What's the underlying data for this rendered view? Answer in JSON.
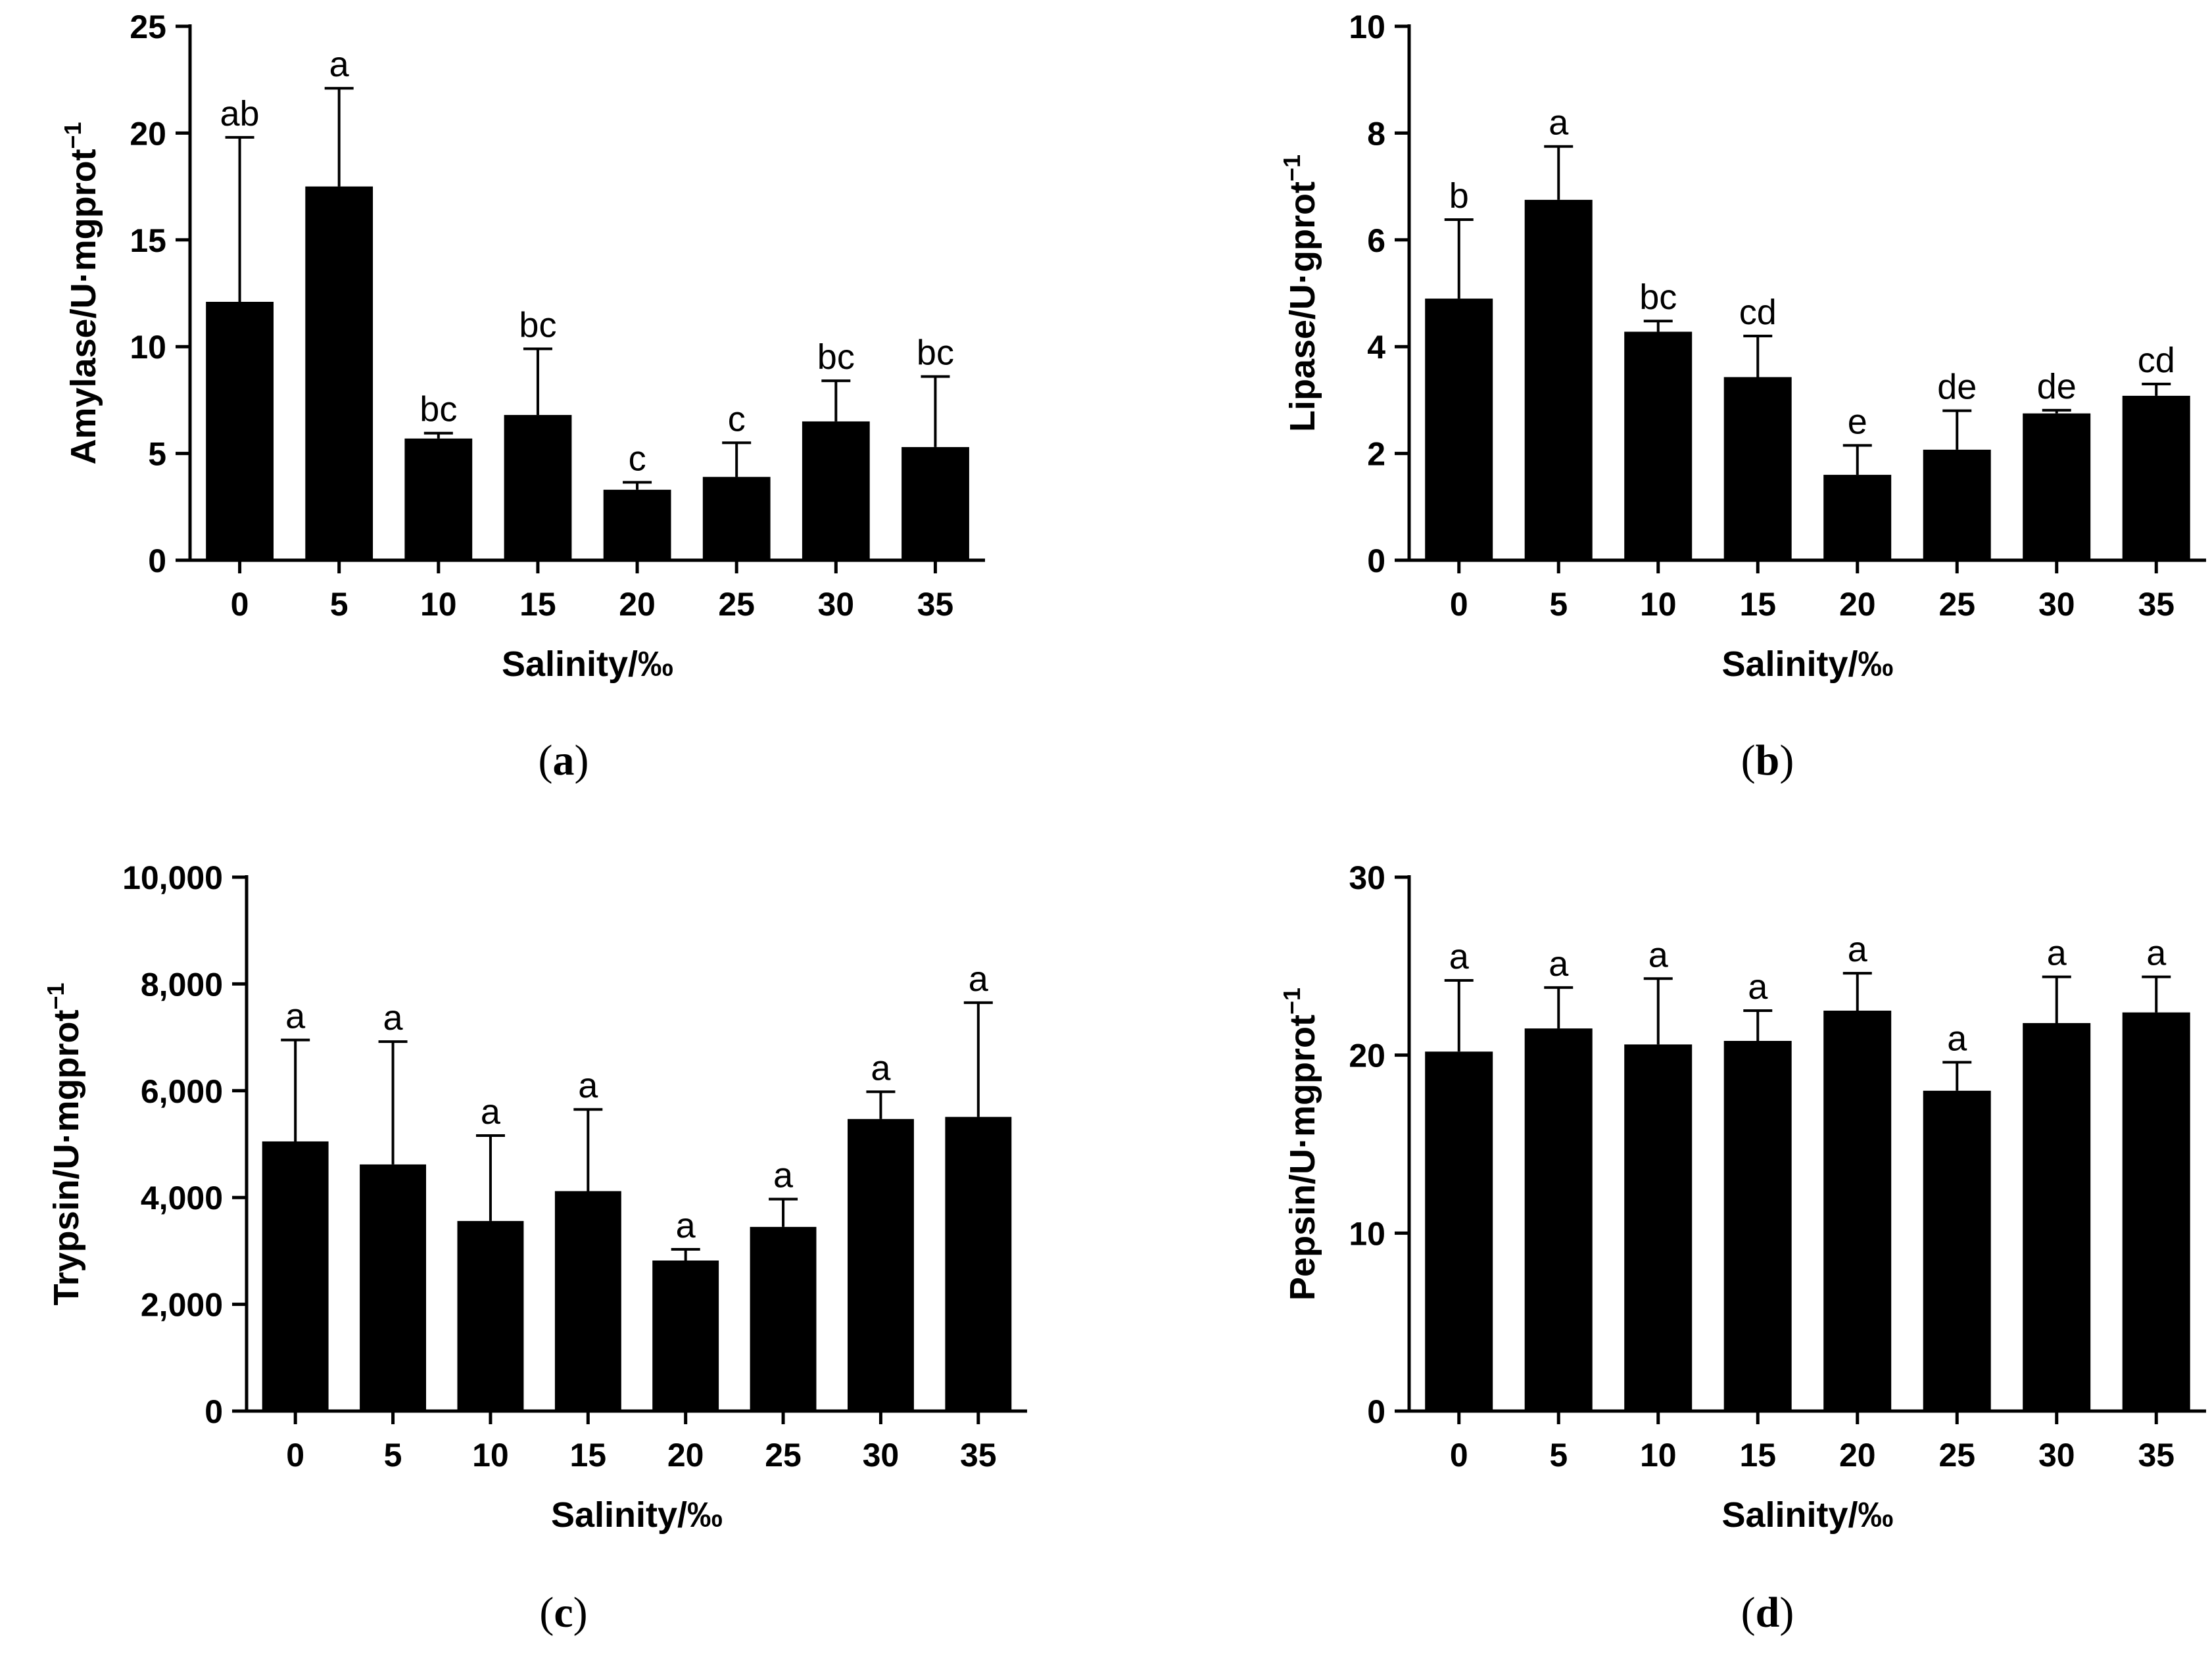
{
  "colors": {
    "bar": "#000000",
    "axis": "#000000",
    "background": "#ffffff"
  },
  "chart_data": [
    {
      "id": "a",
      "type": "bar",
      "panel_label": "(a)",
      "title": "",
      "xlabel": "Salinity/‰",
      "ylabel_main": "Amylase/U·mgprot",
      "ylabel_sup": "−1",
      "categories": [
        "0",
        "5",
        "10",
        "15",
        "20",
        "25",
        "30",
        "35"
      ],
      "values": [
        12.1,
        17.5,
        5.7,
        6.8,
        3.3,
        3.9,
        6.5,
        5.3
      ],
      "errors": [
        7.7,
        4.6,
        0.25,
        3.1,
        0.35,
        1.6,
        1.9,
        3.3
      ],
      "significance": [
        "ab",
        "a",
        "bc",
        "bc",
        "c",
        "c",
        "bc",
        "bc"
      ],
      "ylim": [
        0,
        25
      ],
      "yticks": [
        0,
        5,
        10,
        15,
        20,
        25
      ],
      "ytick_labels": [
        "0",
        "5",
        "10",
        "15",
        "20",
        "25"
      ]
    },
    {
      "id": "b",
      "type": "bar",
      "panel_label": "(b)",
      "title": "",
      "xlabel": "Salinity/‰",
      "ylabel_main": "Lipase/U·gprot",
      "ylabel_sup": "−1",
      "categories": [
        "0",
        "5",
        "10",
        "15",
        "20",
        "25",
        "30",
        "35"
      ],
      "values": [
        4.9,
        6.75,
        4.28,
        3.43,
        1.6,
        2.07,
        2.75,
        3.08
      ],
      "errors": [
        1.48,
        1.0,
        0.2,
        0.77,
        0.55,
        0.73,
        0.06,
        0.22
      ],
      "significance": [
        "b",
        "a",
        "bc",
        "cd",
        "e",
        "de",
        "de",
        "cd"
      ],
      "ylim": [
        0,
        10
      ],
      "yticks": [
        0,
        2,
        4,
        6,
        8,
        10
      ],
      "ytick_labels": [
        "0",
        "2",
        "4",
        "6",
        "8",
        "10"
      ]
    },
    {
      "id": "c",
      "type": "bar",
      "panel_label": "(c)",
      "title": "",
      "xlabel": "Salinity/‰",
      "ylabel_main": "Trypsin/U·mgprot",
      "ylabel_sup": "−1",
      "categories": [
        "0",
        "5",
        "10",
        "15",
        "20",
        "25",
        "30",
        "35"
      ],
      "values": [
        5050,
        4620,
        3560,
        4120,
        2820,
        3450,
        5470,
        5510
      ],
      "errors": [
        1900,
        2300,
        1600,
        1530,
        210,
        520,
        510,
        2140
      ],
      "significance": [
        "a",
        "a",
        "a",
        "a",
        "a",
        "a",
        "a",
        "a"
      ],
      "ylim": [
        0,
        10000
      ],
      "yticks": [
        0,
        2000,
        4000,
        6000,
        8000,
        10000
      ],
      "ytick_labels": [
        "0",
        "2,000",
        "4,000",
        "6,000",
        "8,000",
        "10,000"
      ]
    },
    {
      "id": "d",
      "type": "bar",
      "panel_label": "(d)",
      "title": "",
      "xlabel": "Salinity/‰",
      "ylabel_main": "Pepsin/U·mgprot",
      "ylabel_sup": "−1",
      "categories": [
        "0",
        "5",
        "10",
        "15",
        "20",
        "25",
        "30",
        "35"
      ],
      "values": [
        20.2,
        21.5,
        20.6,
        20.8,
        22.5,
        18.0,
        21.8,
        22.4
      ],
      "errors": [
        4.0,
        2.3,
        3.7,
        1.7,
        2.1,
        1.6,
        2.6,
        2.0
      ],
      "significance": [
        "a",
        "a",
        "a",
        "a",
        "a",
        "a",
        "a",
        "a"
      ],
      "ylim": [
        0,
        30
      ],
      "yticks": [
        0,
        10,
        20,
        30
      ],
      "ytick_labels": [
        "0",
        "10",
        "20",
        "30"
      ]
    }
  ]
}
